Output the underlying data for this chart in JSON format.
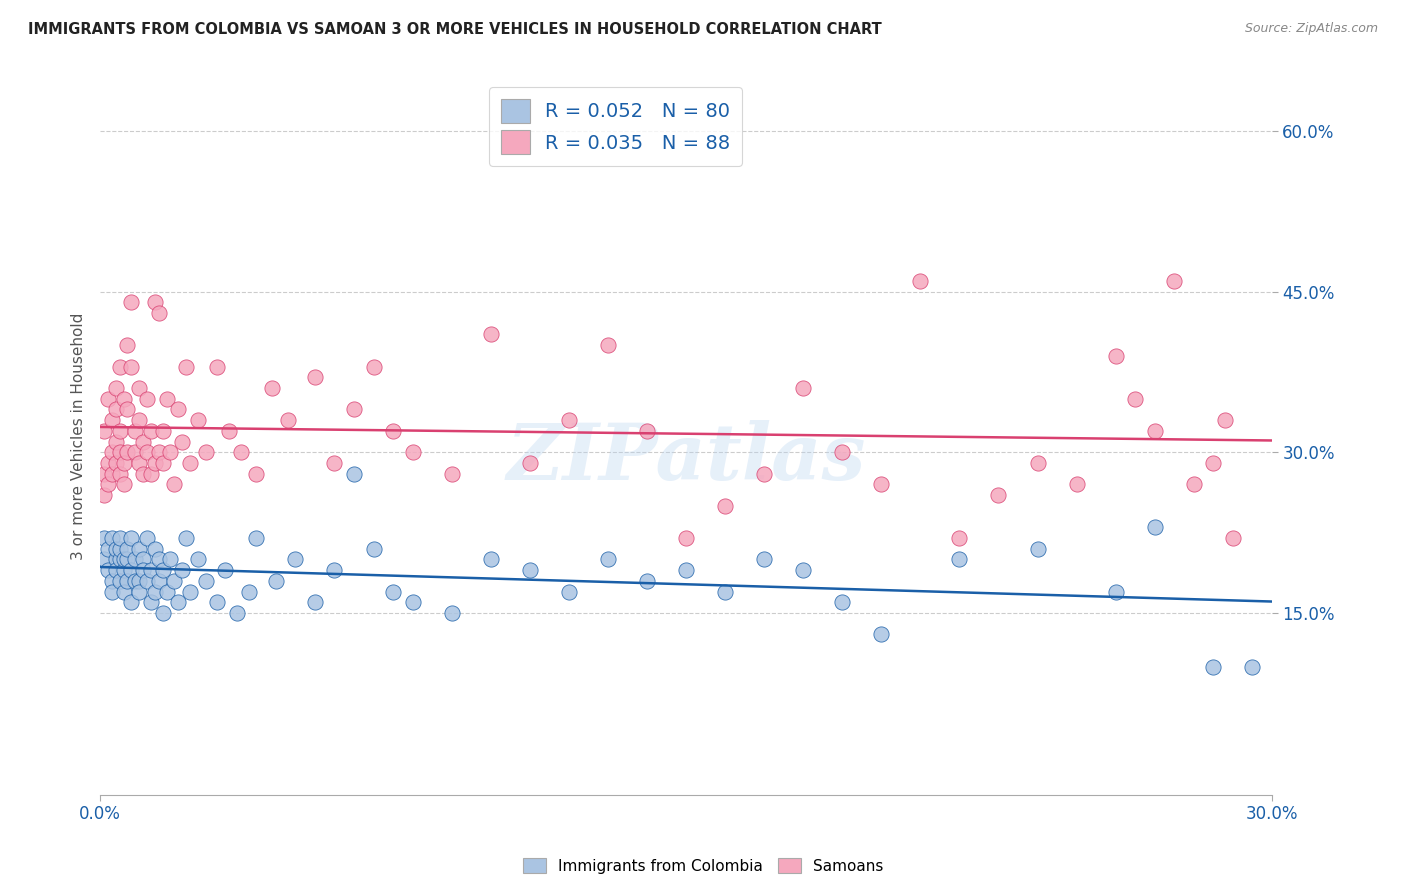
{
  "title": "IMMIGRANTS FROM COLOMBIA VS SAMOAN 3 OR MORE VEHICLES IN HOUSEHOLD CORRELATION CHART",
  "source": "Source: ZipAtlas.com",
  "ylabel": "3 or more Vehicles in Household",
  "yticks": [
    "60.0%",
    "45.0%",
    "30.0%",
    "15.0%"
  ],
  "ytick_vals": [
    0.6,
    0.45,
    0.3,
    0.15
  ],
  "xlim": [
    0.0,
    0.3
  ],
  "ylim": [
    -0.02,
    0.65
  ],
  "colombia_R": 0.052,
  "colombia_N": 80,
  "samoan_R": 0.035,
  "samoan_N": 88,
  "colombia_color": "#aac4e2",
  "samoan_color": "#f5a8be",
  "colombia_line_color": "#1a5fa8",
  "samoan_line_color": "#d94070",
  "watermark": "ZIPatlas",
  "legend_entries": [
    "Immigrants from Colombia",
    "Samoans"
  ],
  "background_color": "#ffffff",
  "grid_color": "#cccccc",
  "title_color": "#222222",
  "colombia_x": [
    0.001,
    0.001,
    0.002,
    0.002,
    0.003,
    0.003,
    0.003,
    0.004,
    0.004,
    0.004,
    0.005,
    0.005,
    0.005,
    0.005,
    0.006,
    0.006,
    0.006,
    0.007,
    0.007,
    0.007,
    0.008,
    0.008,
    0.008,
    0.009,
    0.009,
    0.01,
    0.01,
    0.01,
    0.011,
    0.011,
    0.012,
    0.012,
    0.013,
    0.013,
    0.014,
    0.014,
    0.015,
    0.015,
    0.016,
    0.016,
    0.017,
    0.018,
    0.019,
    0.02,
    0.021,
    0.022,
    0.023,
    0.025,
    0.027,
    0.03,
    0.032,
    0.035,
    0.038,
    0.04,
    0.045,
    0.05,
    0.055,
    0.06,
    0.065,
    0.07,
    0.075,
    0.08,
    0.09,
    0.1,
    0.11,
    0.12,
    0.13,
    0.14,
    0.15,
    0.16,
    0.17,
    0.18,
    0.19,
    0.2,
    0.22,
    0.24,
    0.26,
    0.27,
    0.285,
    0.295
  ],
  "colombia_y": [
    0.2,
    0.22,
    0.19,
    0.21,
    0.18,
    0.22,
    0.17,
    0.2,
    0.21,
    0.19,
    0.2,
    0.18,
    0.21,
    0.22,
    0.19,
    0.2,
    0.17,
    0.18,
    0.2,
    0.21,
    0.19,
    0.16,
    0.22,
    0.18,
    0.2,
    0.21,
    0.18,
    0.17,
    0.2,
    0.19,
    0.22,
    0.18,
    0.19,
    0.16,
    0.21,
    0.17,
    0.2,
    0.18,
    0.19,
    0.15,
    0.17,
    0.2,
    0.18,
    0.16,
    0.19,
    0.22,
    0.17,
    0.2,
    0.18,
    0.16,
    0.19,
    0.15,
    0.17,
    0.22,
    0.18,
    0.2,
    0.16,
    0.19,
    0.28,
    0.21,
    0.17,
    0.16,
    0.15,
    0.2,
    0.19,
    0.17,
    0.2,
    0.18,
    0.19,
    0.17,
    0.2,
    0.19,
    0.16,
    0.13,
    0.2,
    0.21,
    0.17,
    0.23,
    0.1,
    0.1
  ],
  "samoan_x": [
    0.001,
    0.001,
    0.001,
    0.002,
    0.002,
    0.002,
    0.003,
    0.003,
    0.003,
    0.004,
    0.004,
    0.004,
    0.004,
    0.005,
    0.005,
    0.005,
    0.005,
    0.006,
    0.006,
    0.006,
    0.007,
    0.007,
    0.007,
    0.008,
    0.008,
    0.009,
    0.009,
    0.01,
    0.01,
    0.01,
    0.011,
    0.011,
    0.012,
    0.012,
    0.013,
    0.013,
    0.014,
    0.014,
    0.015,
    0.015,
    0.016,
    0.016,
    0.017,
    0.018,
    0.019,
    0.02,
    0.021,
    0.022,
    0.023,
    0.025,
    0.027,
    0.03,
    0.033,
    0.036,
    0.04,
    0.044,
    0.048,
    0.055,
    0.06,
    0.065,
    0.07,
    0.075,
    0.08,
    0.09,
    0.1,
    0.11,
    0.12,
    0.13,
    0.14,
    0.15,
    0.16,
    0.17,
    0.18,
    0.19,
    0.2,
    0.21,
    0.22,
    0.23,
    0.24,
    0.25,
    0.26,
    0.265,
    0.27,
    0.275,
    0.28,
    0.285,
    0.288,
    0.29
  ],
  "samoan_y": [
    0.28,
    0.32,
    0.26,
    0.35,
    0.29,
    0.27,
    0.33,
    0.3,
    0.28,
    0.36,
    0.31,
    0.29,
    0.34,
    0.38,
    0.32,
    0.3,
    0.28,
    0.35,
    0.29,
    0.27,
    0.4,
    0.34,
    0.3,
    0.44,
    0.38,
    0.32,
    0.3,
    0.36,
    0.33,
    0.29,
    0.31,
    0.28,
    0.35,
    0.3,
    0.32,
    0.28,
    0.44,
    0.29,
    0.43,
    0.3,
    0.32,
    0.29,
    0.35,
    0.3,
    0.27,
    0.34,
    0.31,
    0.38,
    0.29,
    0.33,
    0.3,
    0.38,
    0.32,
    0.3,
    0.28,
    0.36,
    0.33,
    0.37,
    0.29,
    0.34,
    0.38,
    0.32,
    0.3,
    0.28,
    0.41,
    0.29,
    0.33,
    0.4,
    0.32,
    0.22,
    0.25,
    0.28,
    0.36,
    0.3,
    0.27,
    0.46,
    0.22,
    0.26,
    0.29,
    0.27,
    0.39,
    0.35,
    0.32,
    0.46,
    0.27,
    0.29,
    0.33,
    0.22
  ]
}
